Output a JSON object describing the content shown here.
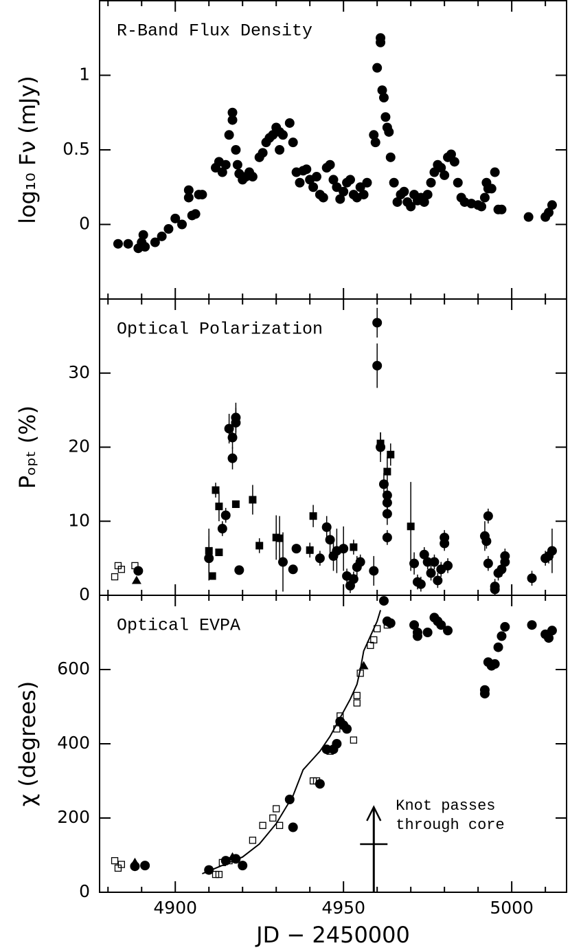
{
  "chart_data": [
    {
      "type": "scatter",
      "title": "R-Band Flux Density",
      "ylabel": "log₁₀ Fν (mJy)",
      "ylim": [
        -0.5,
        1.5
      ],
      "yticks": [
        0,
        0.5,
        1
      ],
      "series": [
        {
          "marker": "circle",
          "color": "#000000",
          "x": [
            4883,
            4886,
            4889,
            4890,
            4890.5,
            4891,
            4894,
            4896,
            4898,
            4900,
            4902,
            4904,
            4904,
            4905,
            4906,
            4907,
            4908,
            4912,
            4913,
            4914,
            4915,
            4916,
            4917,
            4917,
            4918,
            4918.5,
            4919,
            4920,
            4921,
            4922,
            4923,
            4925,
            4926,
            4927,
            4928,
            4929,
            4930,
            4931,
            4931,
            4932,
            4934,
            4935,
            4936,
            4937,
            4938,
            4939,
            4940,
            4941,
            4942,
            4943,
            4944,
            4945,
            4946,
            4947,
            4948,
            4949,
            4950,
            4951,
            4952,
            4953,
            4954,
            4955,
            4956,
            4957,
            4959,
            4959.5,
            4960,
            4961,
            4961,
            4961.5,
            4962,
            4962.5,
            4963,
            4963.5,
            4964,
            4965,
            4966,
            4967,
            4968,
            4969,
            4970,
            4971,
            4972,
            4973,
            4974,
            4975,
            4976,
            4977,
            4978,
            4979,
            4980,
            4981,
            4982,
            4983,
            4984,
            4985,
            4986,
            4988,
            4990,
            4991,
            4992,
            4992.5,
            4993,
            4994,
            4995,
            4996,
            4997,
            5005,
            5010,
            5011,
            5012
          ],
          "values": [
            -0.13,
            -0.13,
            -0.16,
            -0.12,
            -0.07,
            -0.15,
            -0.12,
            -0.08,
            -0.03,
            0.04,
            0.0,
            0.18,
            0.23,
            0.06,
            0.07,
            0.2,
            0.2,
            0.38,
            0.42,
            0.35,
            0.4,
            0.6,
            0.75,
            0.7,
            0.5,
            0.4,
            0.34,
            0.3,
            0.32,
            0.35,
            0.32,
            0.45,
            0.48,
            0.55,
            0.58,
            0.6,
            0.65,
            0.62,
            0.5,
            0.6,
            0.68,
            0.55,
            0.35,
            0.28,
            0.36,
            0.37,
            0.3,
            0.25,
            0.32,
            0.2,
            0.18,
            0.38,
            0.4,
            0.3,
            0.25,
            0.17,
            0.22,
            0.28,
            0.3,
            0.2,
            0.18,
            0.25,
            0.2,
            0.28,
            0.6,
            0.55,
            1.05,
            1.25,
            1.22,
            0.9,
            0.85,
            0.72,
            0.65,
            0.62,
            0.45,
            0.28,
            0.15,
            0.2,
            0.22,
            0.15,
            0.12,
            0.2,
            0.16,
            0.18,
            0.15,
            0.2,
            0.28,
            0.35,
            0.4,
            0.38,
            0.33,
            0.45,
            0.47,
            0.42,
            0.28,
            0.18,
            0.15,
            0.14,
            0.13,
            0.12,
            0.18,
            0.28,
            0.24,
            0.24,
            0.35,
            0.1,
            0.1,
            0.05,
            0.05,
            0.08,
            0.13
          ]
        }
      ]
    },
    {
      "type": "scatter",
      "title": "Optical Polarization",
      "ylabel": "Pₒₚₜ (%)",
      "ylim": [
        0,
        40
      ],
      "yticks": [
        0,
        10,
        20,
        30
      ],
      "series": [
        {
          "marker": "circle",
          "color": "#000000",
          "x": [
            4889,
            4910,
            4914,
            4915,
            4916,
            4917,
            4917,
            4918,
            4918,
            4919,
            4932,
            4935,
            4936,
            4943,
            4945,
            4946,
            4947,
            4948,
            4950,
            4951,
            4952,
            4953,
            4954,
            4955,
            4959,
            4960,
            4960,
            4961,
            4962,
            4963,
            4963,
            4963,
            4963,
            4971,
            4972,
            4973,
            4974,
            4975,
            4976,
            4977,
            4978,
            4979,
            4980,
            4980,
            4981,
            4992,
            4992.5,
            4993,
            4993,
            4995,
            4995,
            4996,
            4997,
            4998,
            4998,
            5006,
            5010,
            5011,
            5012
          ],
          "values": [
            3.3,
            5,
            9,
            10.8,
            22.5,
            18.5,
            21.3,
            24,
            23.3,
            3.4,
            4.5,
            3.5,
            6.3,
            5,
            9.2,
            7.5,
            5.3,
            6,
            6.3,
            2.6,
            1.3,
            2.2,
            3.8,
            4.5,
            3.3,
            36.8,
            31,
            20,
            15,
            13.5,
            12.5,
            11,
            7.8,
            4.3,
            1.8,
            1.5,
            5.5,
            4.5,
            3,
            4.5,
            2,
            3.5,
            7.8,
            7,
            4,
            8,
            7.3,
            10.7,
            4.3,
            1.2,
            0.8,
            3,
            3.5,
            4.5,
            5.3,
            2.3,
            5,
            5.3,
            6
          ],
          "errors": [
            0.5,
            3,
            1,
            1,
            2,
            1.5,
            1.5,
            2,
            2,
            0.5,
            4,
            0.5,
            0.5,
            1,
            1.5,
            2,
            2,
            3,
            3,
            1,
            1,
            1,
            1.5,
            1,
            2,
            2,
            3,
            2,
            1.5,
            2,
            1.5,
            1.5,
            1,
            1.5,
            1,
            1,
            1,
            1,
            1,
            1,
            1,
            1,
            1,
            1,
            1,
            2,
            1,
            1,
            1,
            1,
            1,
            1,
            1,
            1,
            1,
            1,
            1,
            1,
            3
          ]
        },
        {
          "marker": "square",
          "color": "#000000",
          "x": [
            4910,
            4911,
            4912,
            4913,
            4913,
            4918,
            4923,
            4925,
            4930,
            4931,
            4940,
            4941,
            4953,
            4961,
            4963,
            4964,
            4970
          ],
          "values": [
            6,
            2.6,
            14.2,
            12,
            5.8,
            12.3,
            12.9,
            6.7,
            7.8,
            7.7,
            6.1,
            10.7,
            6.5,
            20.5,
            16.7,
            19,
            9.3
          ],
          "errors": [
            3,
            0.5,
            1,
            2,
            0.5,
            0.5,
            2,
            1,
            3,
            3,
            1,
            1.5,
            1,
            1.5,
            2,
            1.5,
            6
          ]
        },
        {
          "marker": "open-square",
          "color": "#000000",
          "x": [
            4882,
            4883,
            4884,
            4888
          ],
          "values": [
            2.5,
            4,
            3.5,
            4
          ]
        },
        {
          "marker": "triangle",
          "color": "#000000",
          "x": [
            4888.5
          ],
          "values": [
            2
          ]
        }
      ]
    },
    {
      "type": "scatter",
      "title": "Optical EVPA",
      "ylabel": "χ (degrees)",
      "xlabel": "JD − 2450000",
      "xlim": [
        4877.5,
        5016.3
      ],
      "xticks": [
        4900,
        4950,
        5000
      ],
      "xminor_ticks": [
        4880,
        4890,
        4910,
        4920,
        4930,
        4940,
        4960,
        4970,
        4980,
        4990,
        5010
      ],
      "ylim": [
        0,
        800
      ],
      "yticks": [
        0,
        200,
        400,
        600
      ],
      "series": [
        {
          "marker": "circle",
          "color": "#000000",
          "x": [
            4888,
            4891,
            4910,
            4915,
            4918,
            4920,
            4934,
            4935,
            4943,
            4945,
            4947,
            4948,
            4949,
            4950,
            4951,
            4962,
            4963,
            4964,
            4971,
            4972,
            4972,
            4975,
            4977,
            4978,
            4979,
            4981,
            4992,
            4992,
            4993,
            4994,
            4995,
            4996,
            4997,
            4998,
            5006,
            5010,
            5011,
            5012
          ],
          "values": [
            70,
            72,
            60,
            85,
            90,
            72,
            250,
            175,
            292,
            385,
            385,
            400,
            460,
            450,
            440,
            785,
            730,
            725,
            720,
            700,
            690,
            700,
            740,
            730,
            720,
            705,
            545,
            535,
            620,
            610,
            615,
            660,
            690,
            715,
            720,
            695,
            685,
            705
          ]
        },
        {
          "marker": "open-square",
          "color": "#000000",
          "x": [
            4882,
            4883,
            4884,
            4910,
            4912,
            4913,
            4914,
            4916,
            4923,
            4926,
            4929,
            4930,
            4931,
            4941,
            4942,
            4946,
            4948,
            4949,
            4951,
            4953,
            4954,
            4954,
            4955,
            4958,
            4959,
            4960,
            4963
          ],
          "values": [
            85,
            65,
            75,
            60,
            48,
            48,
            80,
            85,
            140,
            180,
            200,
            225,
            180,
            300,
            300,
            380,
            440,
            475,
            440,
            410,
            530,
            510,
            590,
            665,
            680,
            710,
            720
          ]
        },
        {
          "marker": "triangle",
          "color": "#000000",
          "x": [
            4888,
            4917,
            4956
          ],
          "values": [
            80,
            95,
            610
          ]
        },
        {
          "marker": "line",
          "color": "#000000",
          "x": [
            4908,
            4912,
            4916,
            4920,
            4925,
            4930,
            4935,
            4938,
            4940,
            4943,
            4946,
            4949,
            4952,
            4954,
            4955,
            4956,
            4958,
            4960,
            4961
          ],
          "values": [
            50,
            65,
            80,
            95,
            130,
            185,
            260,
            330,
            350,
            380,
            420,
            470,
            520,
            560,
            600,
            650,
            690,
            730,
            760
          ]
        }
      ],
      "annotation": {
        "text": [
          "Knot passes",
          "through core"
        ],
        "x": 4959
      }
    }
  ]
}
